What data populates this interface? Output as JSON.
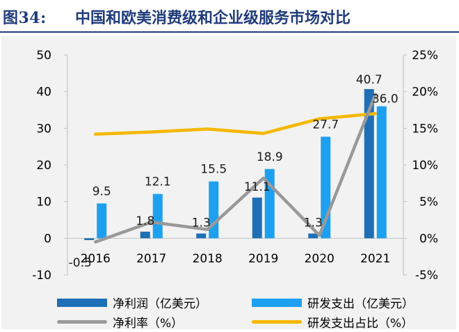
{
  "figure": {
    "label": "图34:",
    "title": "中国和欧美消费级和企业级服务市场对比"
  },
  "colors": {
    "net_profit_bar": "#1f6fb7",
    "rd_bar": "#1ea0f0",
    "net_margin_line": "#999999",
    "rd_ratio_line": "#f5b800",
    "title": "#1f3b7a"
  },
  "chart_data": {
    "type": "bar",
    "categories": [
      "2016",
      "2017",
      "2018",
      "2019",
      "2020",
      "2021"
    ],
    "left_axis": {
      "ylim": [
        -10,
        50
      ],
      "ticks": [
        "-10",
        "0",
        "10",
        "20",
        "30",
        "40",
        "50"
      ]
    },
    "right_axis": {
      "ylim": [
        -5,
        25
      ],
      "ticks": [
        "-5%",
        "0%",
        "5%",
        "10%",
        "15%",
        "20%",
        "25%"
      ]
    },
    "series": [
      {
        "name": "净利润（亿美元）",
        "kind": "bar",
        "axis": "left",
        "values": [
          -0.5,
          1.8,
          1.3,
          11.1,
          1.3,
          40.7
        ],
        "labels": [
          "-0.5",
          "1.8",
          "1.3",
          "11.1",
          "1.3",
          "40.7"
        ]
      },
      {
        "name": "研发支出（亿美元）",
        "kind": "bar",
        "axis": "left",
        "values": [
          9.5,
          12.1,
          15.5,
          18.9,
          27.7,
          36.0
        ],
        "labels": [
          "9.5",
          "12.1",
          "15.5",
          "18.9",
          "27.7",
          "36.0"
        ]
      },
      {
        "name": "净利率（%）",
        "kind": "line",
        "axis": "right",
        "values": [
          -0.5,
          2.2,
          1.2,
          8.2,
          0.4,
          19.6
        ]
      },
      {
        "name": "研发支出占比（%）",
        "kind": "line",
        "axis": "right",
        "values": [
          14.2,
          14.5,
          14.9,
          14.3,
          16.3,
          17.0
        ]
      }
    ],
    "grid": false,
    "legend_position": "bottom"
  }
}
